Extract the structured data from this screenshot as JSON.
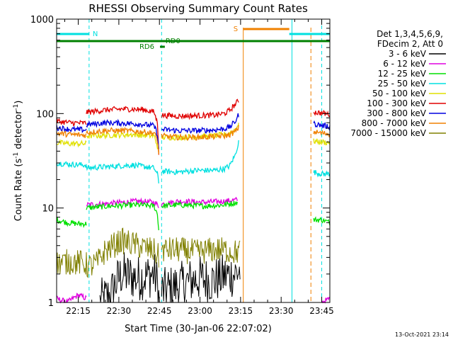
{
  "chart_data": {
    "type": "line",
    "title": "RHESSI Observing Summary Count Rates",
    "xlabel": "Start Time (30-Jan-06 22:07:02)",
    "ylabel_main": "Count Rate (s",
    "ylabel_sup1": "-1",
    "ylabel_mid": " detector",
    "ylabel_sup2": "-1",
    "ylabel_end": ")",
    "yscale": "log",
    "ylim": [
      1,
      1000
    ],
    "xlim_minutes": [
      0,
      101
    ],
    "x_ticks": [
      {
        "t": 8,
        "label": "22:15"
      },
      {
        "t": 23,
        "label": "22:30"
      },
      {
        "t": 38,
        "label": "22:45"
      },
      {
        "t": 53,
        "label": "23:00"
      },
      {
        "t": 68,
        "label": "23:15"
      },
      {
        "t": 83,
        "label": "23:30"
      },
      {
        "t": 98,
        "label": "23:45"
      }
    ],
    "y_ticks": [
      {
        "v": 1,
        "label": "1"
      },
      {
        "v": 10,
        "label": "10"
      },
      {
        "v": 100,
        "label": "100"
      },
      {
        "v": 1000,
        "label": "1000"
      }
    ],
    "legend_header": [
      "Det 1,3,4,5,6,9,",
      "FDecim 2, Att 0"
    ],
    "series": [
      {
        "name": "3 - 6 keV",
        "color": "#000000",
        "segments": [
          [
            [
              16,
              1
            ],
            [
              20,
              1.2
            ],
            [
              24,
              2.0
            ],
            [
              30,
              1.8
            ],
            [
              36,
              2.0
            ],
            [
              37.5,
              1.5
            ],
            [
              38,
              0.8
            ]
          ],
          [
            [
              38.8,
              1.3
            ],
            [
              45,
              1.5
            ],
            [
              52,
              1.8
            ],
            [
              58,
              1.7
            ],
            [
              62,
              1.9
            ],
            [
              66,
              2.0
            ],
            [
              68,
              2.2
            ]
          ]
        ]
      },
      {
        "name": "6 - 12 keV",
        "color": "#e000e0",
        "segments": [
          [
            [
              0,
              1.1
            ],
            [
              4,
              1.0
            ],
            [
              8,
              1.2
            ],
            [
              11,
              1.1
            ]
          ],
          [
            [
              11,
              10.8
            ],
            [
              20,
              11.2
            ],
            [
              30,
              11.8
            ],
            [
              36,
              11.5
            ],
            [
              37.8,
              10.5
            ]
          ],
          [
            [
              38.8,
              11.0
            ],
            [
              45,
              11.8
            ],
            [
              55,
              11.5
            ],
            [
              62,
              11.8
            ],
            [
              67,
              12.2
            ]
          ],
          [
            [
              98,
              1.0
            ],
            [
              101,
              1.1
            ]
          ]
        ]
      },
      {
        "name": "12 - 25 keV",
        "color": "#00e000",
        "segments": [
          [
            [
              0,
              7.5
            ],
            [
              4,
              7.0
            ],
            [
              8,
              6.8
            ],
            [
              11,
              6.8
            ]
          ],
          [
            [
              11,
              10.0
            ],
            [
              20,
              10.5
            ],
            [
              30,
              10.8
            ],
            [
              36,
              10.5
            ],
            [
              37.3,
              8.5
            ],
            [
              37.8,
              5.5
            ]
          ],
          [
            [
              38.8,
              10.5
            ],
            [
              45,
              10.8
            ],
            [
              55,
              10.5
            ],
            [
              62,
              10.8
            ],
            [
              67,
              11.5
            ]
          ],
          [
            [
              95,
              7.5
            ],
            [
              98,
              7.5
            ],
            [
              101,
              7.0
            ]
          ]
        ]
      },
      {
        "name": "25 - 50 keV",
        "color": "#00e0e0",
        "segments": [
          [
            [
              0,
              30
            ],
            [
              5,
              29
            ],
            [
              11,
              28.5
            ]
          ],
          [
            [
              11,
              26.5
            ],
            [
              20,
              27.5
            ],
            [
              28,
              28.5
            ],
            [
              36,
              26.5
            ],
            [
              37.3,
              22.5
            ],
            [
              37.8,
              18
            ]
          ],
          [
            [
              38.8,
              24.5
            ],
            [
              45,
              24
            ],
            [
              52,
              25
            ],
            [
              58,
              25
            ],
            [
              62,
              26
            ],
            [
              64,
              28
            ],
            [
              66,
              36
            ],
            [
              67.5,
              52
            ]
          ],
          [
            [
              95,
              24
            ],
            [
              98,
              23
            ],
            [
              101,
              23
            ]
          ]
        ]
      },
      {
        "name": "50 - 100 keV",
        "color": "#e0e000",
        "segments": [
          [
            [
              0,
              49
            ],
            [
              5,
              48
            ],
            [
              11,
              48
            ]
          ],
          [
            [
              11,
              58
            ],
            [
              20,
              59
            ],
            [
              28,
              60
            ],
            [
              36,
              58
            ],
            [
              37.3,
              45
            ],
            [
              37.8,
              35
            ]
          ],
          [
            [
              38.8,
              56
            ],
            [
              45,
              56
            ],
            [
              52,
              57
            ],
            [
              58,
              58
            ],
            [
              62,
              60
            ],
            [
              64,
              62
            ],
            [
              66,
              68
            ],
            [
              67.5,
              80
            ]
          ],
          [
            [
              95,
              51
            ],
            [
              98,
              50
            ],
            [
              101,
              49
            ]
          ]
        ]
      },
      {
        "name": "100 - 300 keV",
        "color": "#e00000",
        "segments": [
          [
            [
              0,
              83
            ],
            [
              5,
              80
            ],
            [
              11,
              79
            ]
          ],
          [
            [
              11,
              103
            ],
            [
              18,
              109
            ],
            [
              25,
              112
            ],
            [
              32,
              110
            ],
            [
              36,
              104
            ],
            [
              37.3,
              78
            ],
            [
              37.8,
              34
            ]
          ],
          [
            [
              38.8,
              96
            ],
            [
              45,
              94
            ],
            [
              52,
              95
            ],
            [
              58,
              96
            ],
            [
              62,
              100
            ],
            [
              64,
              108
            ],
            [
              66,
              125
            ],
            [
              67.5,
              140
            ]
          ],
          [
            [
              95,
              104
            ],
            [
              98,
              101
            ],
            [
              101,
              98
            ]
          ]
        ]
      },
      {
        "name": "300 - 800 keV",
        "color": "#0000e0",
        "segments": [
          [
            [
              0,
              71
            ],
            [
              5,
              68
            ],
            [
              11,
              67
            ]
          ],
          [
            [
              11,
              76
            ],
            [
              18,
              80
            ],
            [
              25,
              79
            ],
            [
              32,
              77
            ],
            [
              36,
              74
            ],
            [
              37.3,
              60
            ],
            [
              37.8,
              38
            ]
          ],
          [
            [
              38.8,
              68
            ],
            [
              45,
              66
            ],
            [
              52,
              66
            ],
            [
              58,
              67
            ],
            [
              62,
              69
            ],
            [
              64,
              72
            ],
            [
              66,
              82
            ],
            [
              67.5,
              100
            ]
          ],
          [
            [
              95,
              78
            ],
            [
              98,
              75
            ],
            [
              101,
              73
            ]
          ]
        ]
      },
      {
        "name": "800 - 7000 keV",
        "color": "#f08000",
        "segments": [
          [
            [
              0,
              62
            ],
            [
              5,
              60
            ],
            [
              11,
              59
            ]
          ],
          [
            [
              11,
              63
            ],
            [
              18,
              66
            ],
            [
              25,
              66
            ],
            [
              32,
              64
            ],
            [
              36,
              62
            ],
            [
              37.3,
              52
            ],
            [
              37.8,
              36
            ]
          ],
          [
            [
              38.8,
              58
            ],
            [
              45,
              56
            ],
            [
              52,
              56
            ],
            [
              58,
              57
            ],
            [
              62,
              58
            ],
            [
              64,
              60
            ],
            [
              66,
              64
            ],
            [
              67.5,
              72
            ]
          ],
          [
            [
              95,
              64
            ],
            [
              98,
              62
            ],
            [
              101,
              61
            ]
          ]
        ]
      },
      {
        "name": "7000 - 15000 keV",
        "color": "#808000",
        "segments": [
          [
            [
              0,
              2.6
            ],
            [
              5,
              2.7
            ],
            [
              10,
              2.6
            ],
            [
              12,
              2.4
            ],
            [
              15,
              2.6
            ],
            [
              18,
              3.5
            ],
            [
              24,
              4.5
            ],
            [
              30,
              4.0
            ],
            [
              36,
              3.5
            ],
            [
              37.8,
              3.0
            ]
          ],
          [
            [
              38.8,
              3.6
            ],
            [
              45,
              3.6
            ],
            [
              52,
              3.4
            ],
            [
              58,
              3.6
            ],
            [
              62,
              3.6
            ],
            [
              66,
              3.4
            ],
            [
              68,
              3.5
            ]
          ]
        ]
      }
    ],
    "annotations": {
      "N_label": "N",
      "S_label": "S",
      "RD0_label": "RD0",
      "RD6_label": "RD6",
      "night_bars": [
        [
          0,
          12
        ],
        [
          86,
          101
        ]
      ],
      "saa_bar": [
        69,
        86
      ],
      "rd0_bar": [
        0,
        101
      ],
      "rd6_bar": [
        38.2,
        40
      ],
      "cyan_lines": [
        12,
        38.8,
        87,
        98
      ],
      "orange_lines": [
        69,
        94
      ]
    },
    "grid": false,
    "footer_date": "13-Oct-2021 23:14"
  }
}
